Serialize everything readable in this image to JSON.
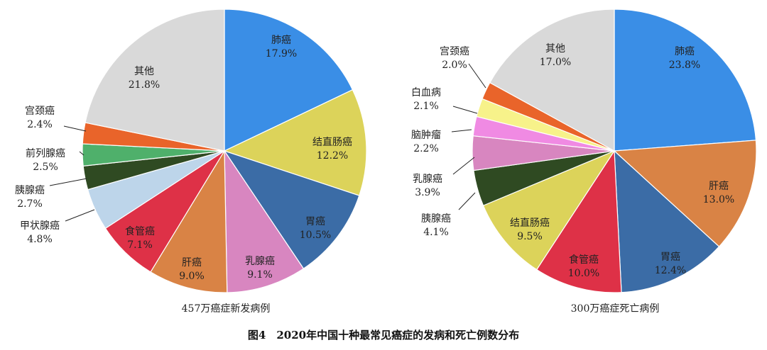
{
  "figure_caption": "图4　2020年中国十种最常见癌症的发病和死亡例数分布",
  "chart_data": [
    {
      "type": "pie",
      "caption": "457万癌症新发病例",
      "start_angle_deg": 0,
      "direction": "clockwise",
      "slices": [
        {
          "name": "肺癌",
          "value": 17.9,
          "label": "17.9%",
          "color": "#3a8ee6"
        },
        {
          "name": "结直肠癌",
          "value": 12.2,
          "label": "12.2%",
          "color": "#dcd35a"
        },
        {
          "name": "胃癌",
          "value": 10.5,
          "label": "10.5%",
          "color": "#3b6ca6"
        },
        {
          "name": "乳腺癌",
          "value": 9.1,
          "label": "9.1%",
          "color": "#d886c0"
        },
        {
          "name": "肝癌",
          "value": 9.0,
          "label": "9.0%",
          "color": "#d98345"
        },
        {
          "name": "食管癌",
          "value": 7.1,
          "label": "7.1%",
          "color": "#de3147"
        },
        {
          "name": "甲状腺癌",
          "value": 4.8,
          "label": "4.8%",
          "color": "#bdd5ea"
        },
        {
          "name": "胰腺癌",
          "value": 2.7,
          "label": "2.7%",
          "color": "#2f4a22"
        },
        {
          "name": "前列腺癌",
          "value": 2.5,
          "label": "2.5%",
          "color": "#4fb06b"
        },
        {
          "name": "宫颈癌",
          "value": 2.4,
          "label": "2.4%",
          "color": "#e9642a"
        },
        {
          "name": "其他",
          "value": 21.8,
          "label": "21.8%",
          "color": "#d9d9d9"
        }
      ]
    },
    {
      "type": "pie",
      "caption": "300万癌症死亡病例",
      "start_angle_deg": 0,
      "direction": "clockwise",
      "slices": [
        {
          "name": "肺癌",
          "value": 23.8,
          "label": "23.8%",
          "color": "#3a8ee6"
        },
        {
          "name": "肝癌",
          "value": 13.0,
          "label": "13.0%",
          "color": "#d98345"
        },
        {
          "name": "胃癌",
          "value": 12.4,
          "label": "12.4%",
          "color": "#3b6ca6"
        },
        {
          "name": "食管癌",
          "value": 10.0,
          "label": "10.0%",
          "color": "#de3147"
        },
        {
          "name": "结直肠癌",
          "value": 9.5,
          "label": "9.5%",
          "color": "#dcd35a"
        },
        {
          "name": "胰腺癌",
          "value": 4.1,
          "label": "4.1%",
          "color": "#2f4a22"
        },
        {
          "name": "乳腺癌",
          "value": 3.9,
          "label": "3.9%",
          "color": "#d886c0"
        },
        {
          "name": "脑肿瘤",
          "value": 2.2,
          "label": "2.2%",
          "color": "#f08ae3"
        },
        {
          "name": "白血病",
          "value": 2.1,
          "label": "2.1%",
          "color": "#f7f28a"
        },
        {
          "name": "宫颈癌",
          "value": 2.0,
          "label": "2.0%",
          "color": "#e9642a"
        },
        {
          "name": "其他",
          "value": 17.0,
          "label": "17.0%",
          "color": "#d9d9d9"
        }
      ]
    }
  ]
}
